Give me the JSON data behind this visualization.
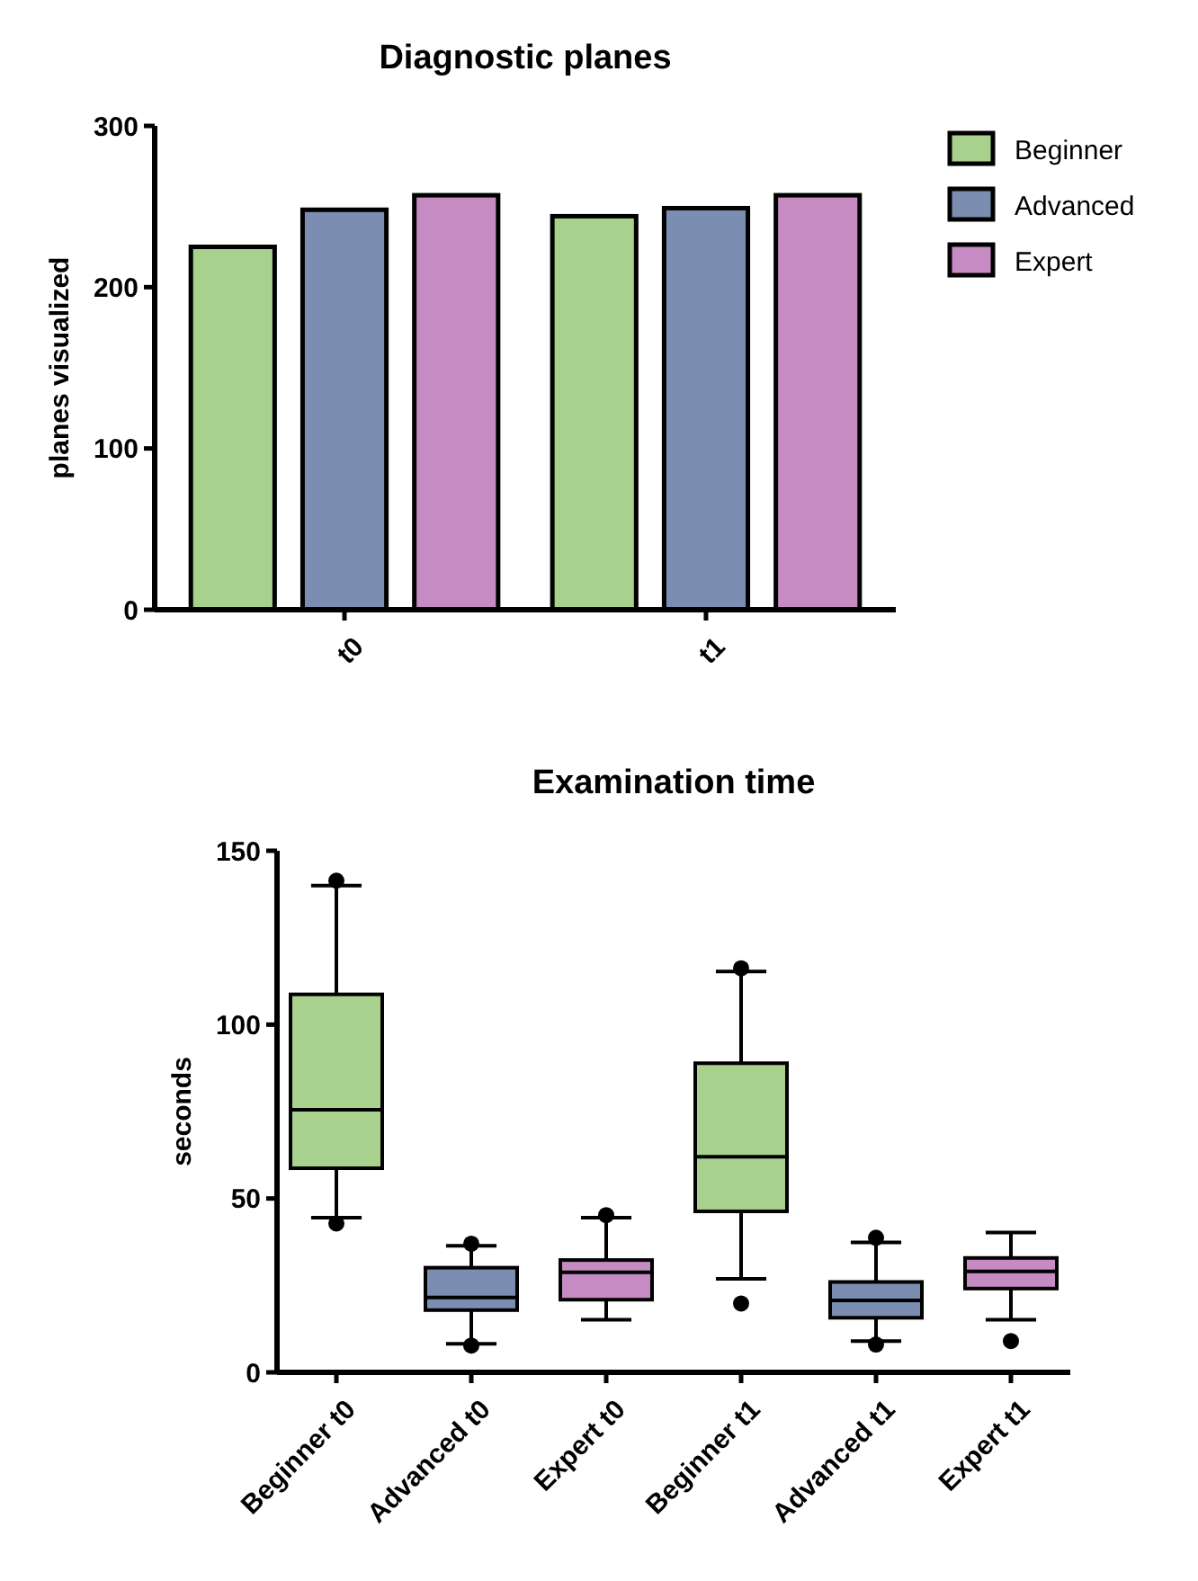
{
  "chart_data": [
    {
      "type": "bar",
      "title": "Diagnostic planes",
      "ylabel": "planes visualized",
      "categories": [
        "t0",
        "t1"
      ],
      "series": [
        {
          "name": "Beginner",
          "color": "#a9d18e",
          "values": [
            225,
            244
          ]
        },
        {
          "name": "Advanced",
          "color": "#7b8db0",
          "values": [
            248,
            249
          ]
        },
        {
          "name": "Expert",
          "color": "#c58bc2",
          "values": [
            257,
            257
          ]
        }
      ],
      "ylim": [
        0,
        300
      ],
      "yticks": [
        0,
        100,
        200,
        300
      ],
      "grid": false,
      "legend": "top right"
    },
    {
      "type": "box",
      "title": "Examination time",
      "ylabel": "seconds",
      "categories": [
        "Beginner t0",
        "Advanced t0",
        "Expert t0",
        "Beginner t1",
        "Advanced t1",
        "Expert t1"
      ],
      "colors": [
        "#a9d18e",
        "#7b8db0",
        "#c58bc2",
        "#a9d18e",
        "#7b8db0",
        "#c58bc2"
      ],
      "boxes": [
        {
          "low": 44.5,
          "q1": 58.7,
          "median": 75.5,
          "q3": 108.7,
          "high": 140,
          "outliers": [
            141.4,
            42.8
          ]
        },
        {
          "low": 8.2,
          "q1": 17.9,
          "median": 21.5,
          "q3": 30.1,
          "high": 36.4,
          "outliers": [
            37,
            7.7
          ]
        },
        {
          "low": 15.1,
          "q1": 20.9,
          "median": 28.8,
          "q3": 32.3,
          "high": 44.5,
          "outliers": [
            45.2
          ]
        },
        {
          "low": 26.9,
          "q1": 46.3,
          "median": 62,
          "q3": 88.9,
          "high": 115.3,
          "outliers": [
            116.2,
            19.8
          ]
        },
        {
          "low": 9,
          "q1": 15.7,
          "median": 20.7,
          "q3": 26,
          "high": 37.4,
          "outliers": [
            38.7,
            8
          ]
        },
        {
          "low": 15.1,
          "q1": 24.1,
          "median": 29,
          "q3": 32.9,
          "high": 40.2,
          "outliers": [
            9
          ]
        }
      ],
      "ylim": [
        0,
        150
      ],
      "yticks": [
        0,
        50,
        100,
        150
      ],
      "grid": false,
      "marker": "circle"
    }
  ]
}
